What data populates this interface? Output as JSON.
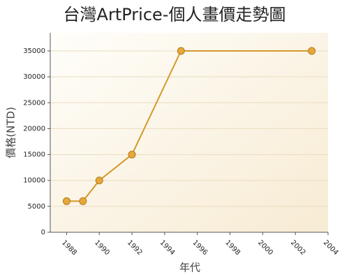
{
  "chart_data": {
    "type": "line",
    "title": "台灣ArtPrice-個人畫價走勢圖",
    "x_label": "年代",
    "y_label": "價格(NTD)",
    "x": [
      1988,
      1989,
      1990,
      1992,
      1995,
      2003
    ],
    "series": [
      {
        "name": "價格",
        "color": "#d4992a",
        "values": [
          6000,
          6000,
          10000,
          15000,
          35000,
          35000
        ]
      }
    ],
    "xlim": [
      1987,
      2004
    ],
    "xticks": [
      1988,
      1990,
      1992,
      1994,
      1996,
      1998,
      2000,
      2002,
      2004
    ],
    "ylim": [
      0,
      38500
    ],
    "yticks": [
      0,
      5000,
      10000,
      15000,
      20000,
      25000,
      30000,
      35000
    ],
    "grid": true
  }
}
